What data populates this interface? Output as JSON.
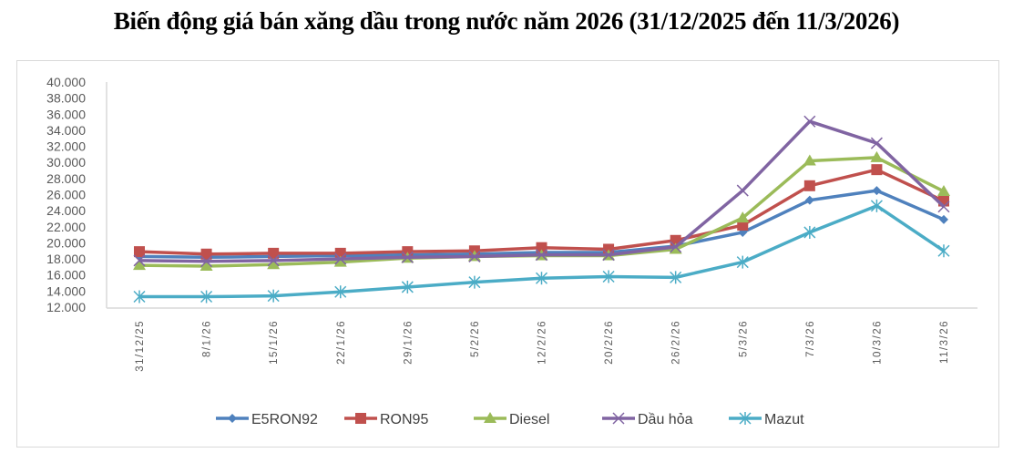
{
  "title": "Biến động giá bán xăng dầu trong nước năm 2026 (31/12/2025 đến 11/3/2026)",
  "chart_data": {
    "type": "line",
    "title": "Biến động giá bán xăng dầu trong nước năm 2026 (31/12/2025 đến 11/3/2026)",
    "xlabel": "",
    "ylabel": "",
    "ylim": [
      12000,
      40000
    ],
    "yticks": [
      "12.000",
      "14.000",
      "16.000",
      "18.000",
      "20.000",
      "22.000",
      "24.000",
      "26.000",
      "28.000",
      "30.000",
      "32.000",
      "34.000",
      "36.000",
      "38.000",
      "40.000"
    ],
    "grid": false,
    "legend_position": "bottom",
    "categories": [
      "31/12/25",
      "8/1/26",
      "15/1/26",
      "22/1/26",
      "29/1/26",
      "5/2/26",
      "12/2/26",
      "20/2/26",
      "26/2/26",
      "5/3/26",
      "7/3/26",
      "10/3/26",
      "11/3/26"
    ],
    "series": [
      {
        "name": "E5RON92",
        "color": "#4F81BD",
        "marker": "diamond",
        "values": [
          18300,
          18200,
          18300,
          18400,
          18500,
          18600,
          18800,
          18800,
          19600,
          21300,
          25300,
          26500,
          22900
        ]
      },
      {
        "name": "RON95",
        "color": "#C0504D",
        "marker": "square",
        "values": [
          18900,
          18600,
          18700,
          18700,
          18900,
          19000,
          19400,
          19200,
          20300,
          22200,
          27100,
          29100,
          25200
        ]
      },
      {
        "name": "Diesel",
        "color": "#9BBB59",
        "marker": "triangle",
        "values": [
          17200,
          17100,
          17300,
          17600,
          18100,
          18300,
          18400,
          18400,
          19200,
          23100,
          30200,
          30600,
          26400
        ]
      },
      {
        "name": "Dầu hỏa",
        "color": "#8064A2",
        "marker": "x",
        "values": [
          17800,
          17700,
          17800,
          18000,
          18200,
          18300,
          18500,
          18500,
          19500,
          26500,
          35100,
          32400,
          24500
        ]
      },
      {
        "name": "Mazut",
        "color": "#4BACC6",
        "marker": "asterisk",
        "values": [
          13300,
          13300,
          13400,
          13900,
          14500,
          15100,
          15600,
          15800,
          15700,
          17600,
          21300,
          24600,
          19000
        ]
      }
    ]
  }
}
